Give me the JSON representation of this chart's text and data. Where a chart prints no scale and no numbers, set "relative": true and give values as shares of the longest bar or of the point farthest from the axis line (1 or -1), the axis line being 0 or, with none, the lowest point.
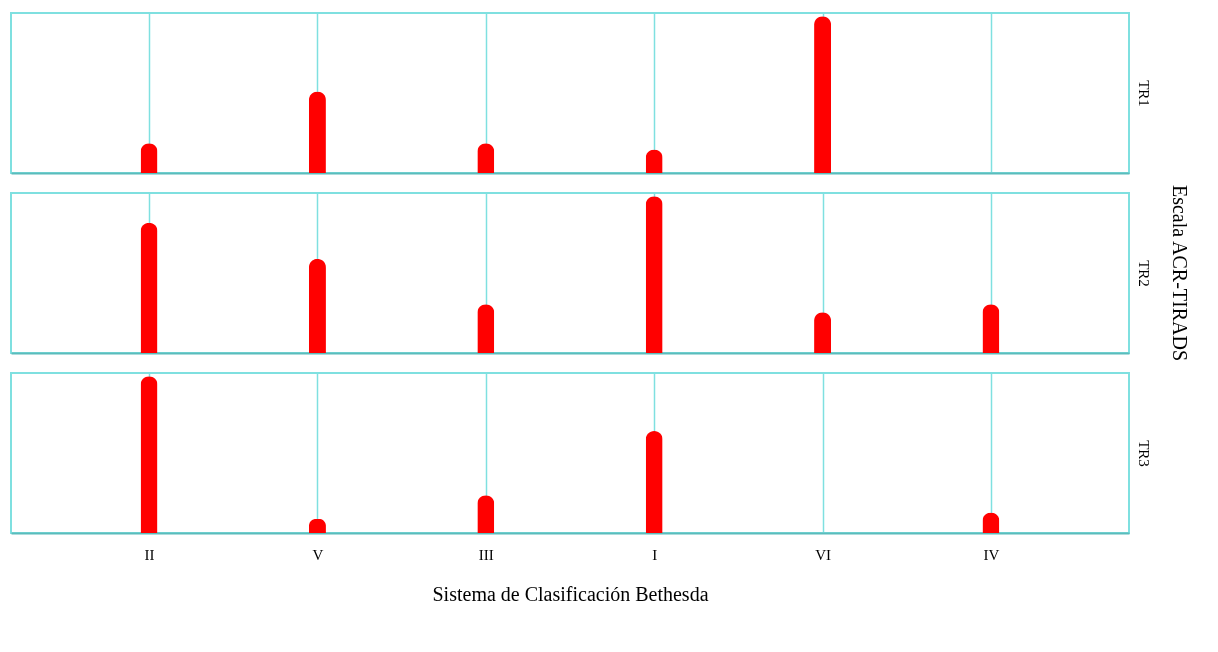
{
  "chart_data": [
    {
      "type": "bar",
      "title": "TR1",
      "categories": [
        null,
        null,
        null,
        null,
        null,
        null
      ],
      "values": [
        0.19,
        0.52,
        0.19,
        0.15,
        1,
        0
      ],
      "color": "#ff0000",
      "relative": true,
      "grid": "x",
      "tick_labels": false
    },
    {
      "type": "bar",
      "title": "TR2",
      "categories": [
        null,
        null,
        null,
        null,
        null,
        null
      ],
      "values": [
        0.83,
        0.6,
        0.31,
        1,
        0.26,
        0.31
      ],
      "color": "#ff0000",
      "relative": true,
      "grid": "x",
      "tick_labels": false,
      "ylabel": "Escala ACR-TIRADS"
    },
    {
      "type": "bar",
      "title": "TR3",
      "categories": [
        "II",
        "V",
        "III",
        "I",
        "VI",
        "IV"
      ],
      "values": [
        1,
        0.09,
        0.24,
        0.65,
        0,
        0.13
      ],
      "color": "#ff0000",
      "relative": true,
      "grid": "x",
      "tick_labels": "x",
      "xlabel": "Sistema de Clasificación Bethesda"
    }
  ]
}
